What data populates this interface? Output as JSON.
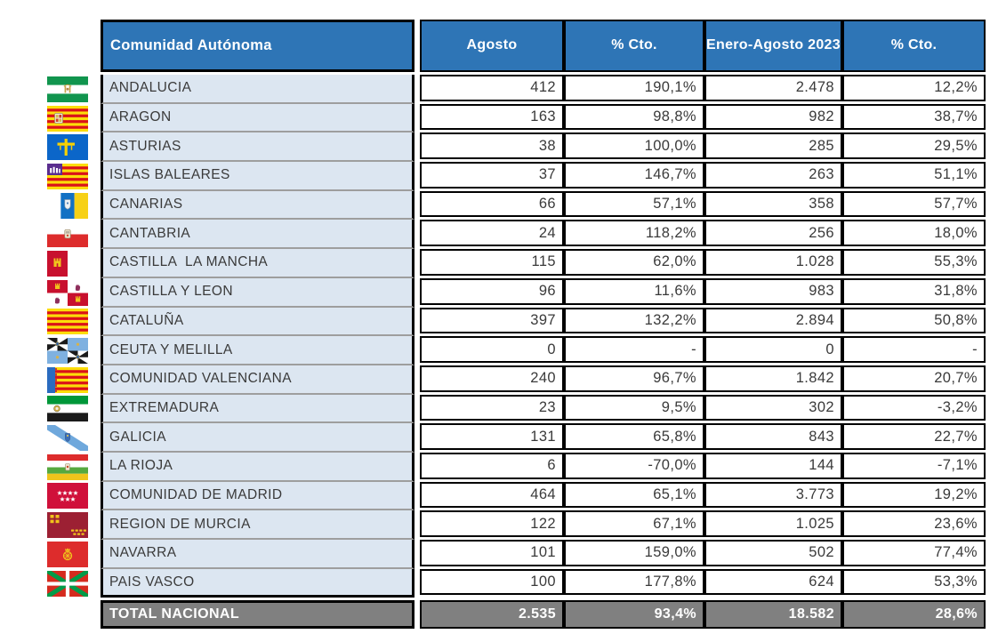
{
  "colors": {
    "header_bg": "#2e75b6",
    "header_text": "#ffffff",
    "row_bg": "#dce6f1",
    "total_bg": "#808080",
    "total_text": "#ffffff",
    "cell_border": "#000000",
    "row_separator": "#9e9e9e",
    "text": "#3a3a3a"
  },
  "chart_data": {
    "type": "table",
    "title": "",
    "columns": [
      "Comunidad Autónoma",
      "Agosto",
      "% Cto.",
      "Enero-Agosto 2023",
      "% Cto."
    ],
    "rows": [
      {
        "name": "ANDALUCIA",
        "flag": "andalucia-flag-icon",
        "agosto": "412",
        "cto_agosto": "190,1%",
        "enero_agosto_2023": "2.478",
        "cto_enero_agosto": "12,2%"
      },
      {
        "name": "ARAGON",
        "flag": "aragon-flag-icon",
        "agosto": "163",
        "cto_agosto": "98,8%",
        "enero_agosto_2023": "982",
        "cto_enero_agosto": "38,7%"
      },
      {
        "name": "ASTURIAS",
        "flag": "asturias-flag-icon",
        "agosto": "38",
        "cto_agosto": "100,0%",
        "enero_agosto_2023": "285",
        "cto_enero_agosto": "29,5%"
      },
      {
        "name": "ISLAS BALEARES",
        "flag": "islas-baleares-flag-icon",
        "agosto": "37",
        "cto_agosto": "146,7%",
        "enero_agosto_2023": "263",
        "cto_enero_agosto": "51,1%"
      },
      {
        "name": "CANARIAS",
        "flag": "canarias-flag-icon",
        "agosto": "66",
        "cto_agosto": "57,1%",
        "enero_agosto_2023": "358",
        "cto_enero_agosto": "57,7%"
      },
      {
        "name": "CANTABRIA",
        "flag": "cantabria-flag-icon",
        "agosto": "24",
        "cto_agosto": "118,2%",
        "enero_agosto_2023": "256",
        "cto_enero_agosto": "18,0%"
      },
      {
        "name": "CASTILLA  LA MANCHA",
        "flag": "castilla-la-mancha-flag-icon",
        "agosto": "115",
        "cto_agosto": "62,0%",
        "enero_agosto_2023": "1.028",
        "cto_enero_agosto": "55,3%"
      },
      {
        "name": "CASTILLA Y LEON",
        "flag": "castilla-y-leon-flag-icon",
        "agosto": "96",
        "cto_agosto": "11,6%",
        "enero_agosto_2023": "983",
        "cto_enero_agosto": "31,8%"
      },
      {
        "name": "CATALUÑA",
        "flag": "cataluna-flag-icon",
        "agosto": "397",
        "cto_agosto": "132,2%",
        "enero_agosto_2023": "2.894",
        "cto_enero_agosto": "50,8%"
      },
      {
        "name": "CEUTA Y MELILLA",
        "flag": "ceuta-y-melilla-flag-icon",
        "agosto": "0",
        "cto_agosto": "-",
        "enero_agosto_2023": "0",
        "cto_enero_agosto": "-"
      },
      {
        "name": "COMUNIDAD VALENCIANA",
        "flag": "comunidad-valenciana-flag-icon",
        "agosto": "240",
        "cto_agosto": "96,7%",
        "enero_agosto_2023": "1.842",
        "cto_enero_agosto": "20,7%"
      },
      {
        "name": "EXTREMADURA",
        "flag": "extremadura-flag-icon",
        "agosto": "23",
        "cto_agosto": "9,5%",
        "enero_agosto_2023": "302",
        "cto_enero_agosto": "-3,2%"
      },
      {
        "name": "GALICIA",
        "flag": "galicia-flag-icon",
        "agosto": "131",
        "cto_agosto": "65,8%",
        "enero_agosto_2023": "843",
        "cto_enero_agosto": "22,7%"
      },
      {
        "name": "LA RIOJA",
        "flag": "la-rioja-flag-icon",
        "agosto": "6",
        "cto_agosto": "-70,0%",
        "enero_agosto_2023": "144",
        "cto_enero_agosto": "-7,1%"
      },
      {
        "name": "COMUNIDAD DE MADRID",
        "flag": "comunidad-de-madrid-flag-icon",
        "agosto": "464",
        "cto_agosto": "65,1%",
        "enero_agosto_2023": "3.773",
        "cto_enero_agosto": "19,2%"
      },
      {
        "name": "REGION DE MURCIA",
        "flag": "region-de-murcia-flag-icon",
        "agosto": "122",
        "cto_agosto": "67,1%",
        "enero_agosto_2023": "1.025",
        "cto_enero_agosto": "23,6%"
      },
      {
        "name": "NAVARRA",
        "flag": "navarra-flag-icon",
        "agosto": "101",
        "cto_agosto": "159,0%",
        "enero_agosto_2023": "502",
        "cto_enero_agosto": "77,4%"
      },
      {
        "name": "PAIS VASCO",
        "flag": "pais-vasco-flag-icon",
        "agosto": "100",
        "cto_agosto": "177,8%",
        "enero_agosto_2023": "624",
        "cto_enero_agosto": "53,3%"
      }
    ],
    "total": {
      "name": "TOTAL NACIONAL",
      "agosto": "2.535",
      "cto_agosto": "93,4%",
      "enero_agosto_2023": "18.582",
      "cto_enero_agosto": "28,6%"
    }
  }
}
